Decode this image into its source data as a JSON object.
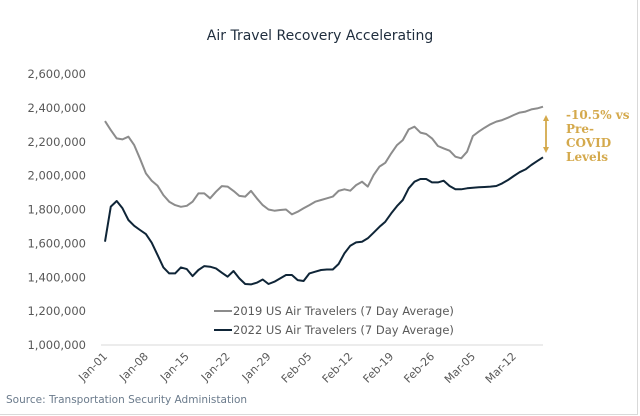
{
  "chart_data": {
    "type": "line",
    "title": "Air Travel Recovery Accelerating",
    "x_tick_labels": [
      "Jan-01",
      "Jan-08",
      "Jan-15",
      "Jan-22",
      "Jan-29",
      "Feb-05",
      "Feb-12",
      "Feb-19",
      "Feb-26",
      "Mar-05",
      "Mar-12"
    ],
    "x_start": "Jan-01",
    "x_end": "Mar-17",
    "ylim": [
      1000000,
      2600000
    ],
    "y_tick_labels": [
      "1,000,000",
      "1,200,000",
      "1,400,000",
      "1,600,000",
      "1,800,000",
      "2,000,000",
      "2,200,000",
      "2,400,000",
      "2,600,000"
    ],
    "grid": false,
    "legend_position": "bottom-center",
    "series": [
      {
        "name": "2019 US Air Travelers (7 Day Average)",
        "color": "#8c8c8c",
        "values": [
          2322000,
          2269000,
          2220000,
          2214000,
          2230000,
          2180000,
          2100000,
          2013000,
          1970000,
          1940000,
          1885000,
          1846000,
          1826000,
          1816000,
          1822000,
          1846000,
          1895000,
          1895000,
          1866000,
          1905000,
          1938000,
          1935000,
          1910000,
          1880000,
          1876000,
          1910000,
          1866000,
          1826000,
          1800000,
          1793000,
          1797000,
          1800000,
          1771000,
          1787000,
          1807000,
          1826000,
          1846000,
          1856000,
          1866000,
          1876000,
          1910000,
          1919000,
          1911000,
          1944000,
          1964000,
          1935000,
          2003000,
          2053000,
          2076000,
          2131000,
          2180000,
          2210000,
          2273000,
          2289000,
          2254000,
          2246000,
          2220000,
          2175000,
          2161000,
          2147000,
          2112000,
          2102000,
          2141000,
          2234000,
          2260000,
          2283000,
          2303000,
          2319000,
          2328000,
          2342000,
          2358000,
          2372000,
          2378000,
          2391000,
          2397000,
          2407000
        ]
      },
      {
        "name": "2022 US Air Travelers (7 Day Average)",
        "color": "#0f2537",
        "values": [
          1610000,
          1817000,
          1850000,
          1807000,
          1738000,
          1704000,
          1679000,
          1655000,
          1604000,
          1531000,
          1458000,
          1423000,
          1423000,
          1458000,
          1448000,
          1407000,
          1443000,
          1466000,
          1462000,
          1452000,
          1427000,
          1403000,
          1437000,
          1393000,
          1360000,
          1358000,
          1368000,
          1387000,
          1360000,
          1374000,
          1393000,
          1413000,
          1413000,
          1383000,
          1378000,
          1423000,
          1433000,
          1443000,
          1446000,
          1446000,
          1478000,
          1541000,
          1586000,
          1606000,
          1610000,
          1630000,
          1663000,
          1698000,
          1728000,
          1777000,
          1820000,
          1856000,
          1925000,
          1964000,
          1980000,
          1980000,
          1960000,
          1960000,
          1970000,
          1939000,
          1919000,
          1919000,
          1925000,
          1929000,
          1931000,
          1933000,
          1935000,
          1939000,
          1954000,
          1974000,
          1998000,
          2020000,
          2037000,
          2063000,
          2086000,
          2108000
        ]
      }
    ],
    "annotation": {
      "lines": [
        "-10.5% vs",
        "Pre-COVID",
        "Levels"
      ],
      "color": "#d4a94c"
    }
  },
  "source": "Source: Transportation Security Administation"
}
